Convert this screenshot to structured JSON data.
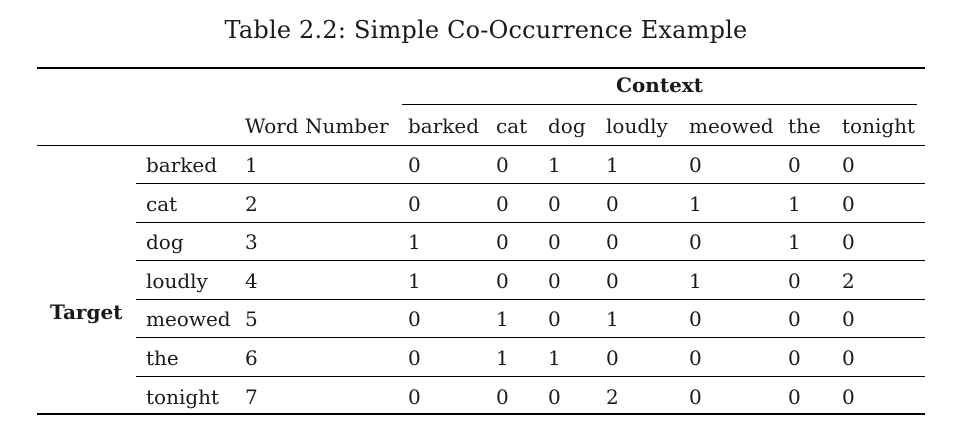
{
  "caption": "Table 2.2: Simple Co-Occurrence Example",
  "header": {
    "context_label": "Context",
    "target_label": "Target",
    "word_number_label": "Word Number",
    "context_columns": [
      "barked",
      "cat",
      "dog",
      "loudly",
      "meowed",
      "the",
      "tonight"
    ]
  },
  "rows": [
    {
      "word": "barked",
      "number": "1",
      "values": [
        "0",
        "0",
        "1",
        "1",
        "0",
        "0",
        "0"
      ]
    },
    {
      "word": "cat",
      "number": "2",
      "values": [
        "0",
        "0",
        "0",
        "0",
        "1",
        "1",
        "0"
      ]
    },
    {
      "word": "dog",
      "number": "3",
      "values": [
        "1",
        "0",
        "0",
        "0",
        "0",
        "1",
        "0"
      ]
    },
    {
      "word": "loudly",
      "number": "4",
      "values": [
        "1",
        "0",
        "0",
        "0",
        "1",
        "0",
        "2"
      ]
    },
    {
      "word": "meowed",
      "number": "5",
      "values": [
        "0",
        "1",
        "0",
        "1",
        "0",
        "0",
        "0"
      ]
    },
    {
      "word": "the",
      "number": "6",
      "values": [
        "0",
        "1",
        "1",
        "0",
        "0",
        "0",
        "0"
      ]
    },
    {
      "word": "tonight",
      "number": "7",
      "values": [
        "0",
        "0",
        "0",
        "2",
        "0",
        "0",
        "0"
      ]
    }
  ]
}
